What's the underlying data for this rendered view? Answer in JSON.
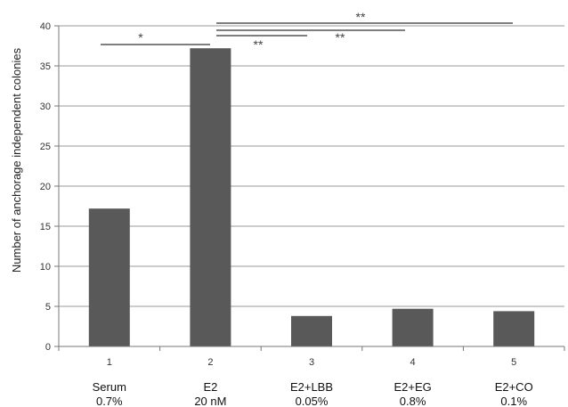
{
  "chart_data": {
    "type": "bar",
    "x_ticks": [
      "1",
      "2",
      "3",
      "4",
      "5"
    ],
    "categories": [
      {
        "name": "Serum",
        "dose": "0.7%"
      },
      {
        "name": "E2",
        "dose": "20 nM"
      },
      {
        "name": "E2+LBB",
        "dose": "0.05%"
      },
      {
        "name": "E2+EG",
        "dose": "0.8%"
      },
      {
        "name": "E2+CO",
        "dose": "0.1%"
      }
    ],
    "values": [
      17.2,
      37.2,
      3.8,
      4.7,
      4.4
    ],
    "ylabel": "Number of anchorage independent colonies",
    "ylim": [
      0,
      40
    ],
    "y_ticks": [
      0,
      5,
      10,
      15,
      20,
      25,
      30,
      35,
      40
    ],
    "grid": true,
    "bar_color": "#595959",
    "annotations": [
      {
        "from": 1,
        "to": 2,
        "label": "*"
      },
      {
        "from": 2,
        "to": 3,
        "label": "**"
      },
      {
        "from": 2,
        "to": 4,
        "label": "**"
      },
      {
        "from": 2,
        "to": 5,
        "label": "**"
      }
    ]
  }
}
